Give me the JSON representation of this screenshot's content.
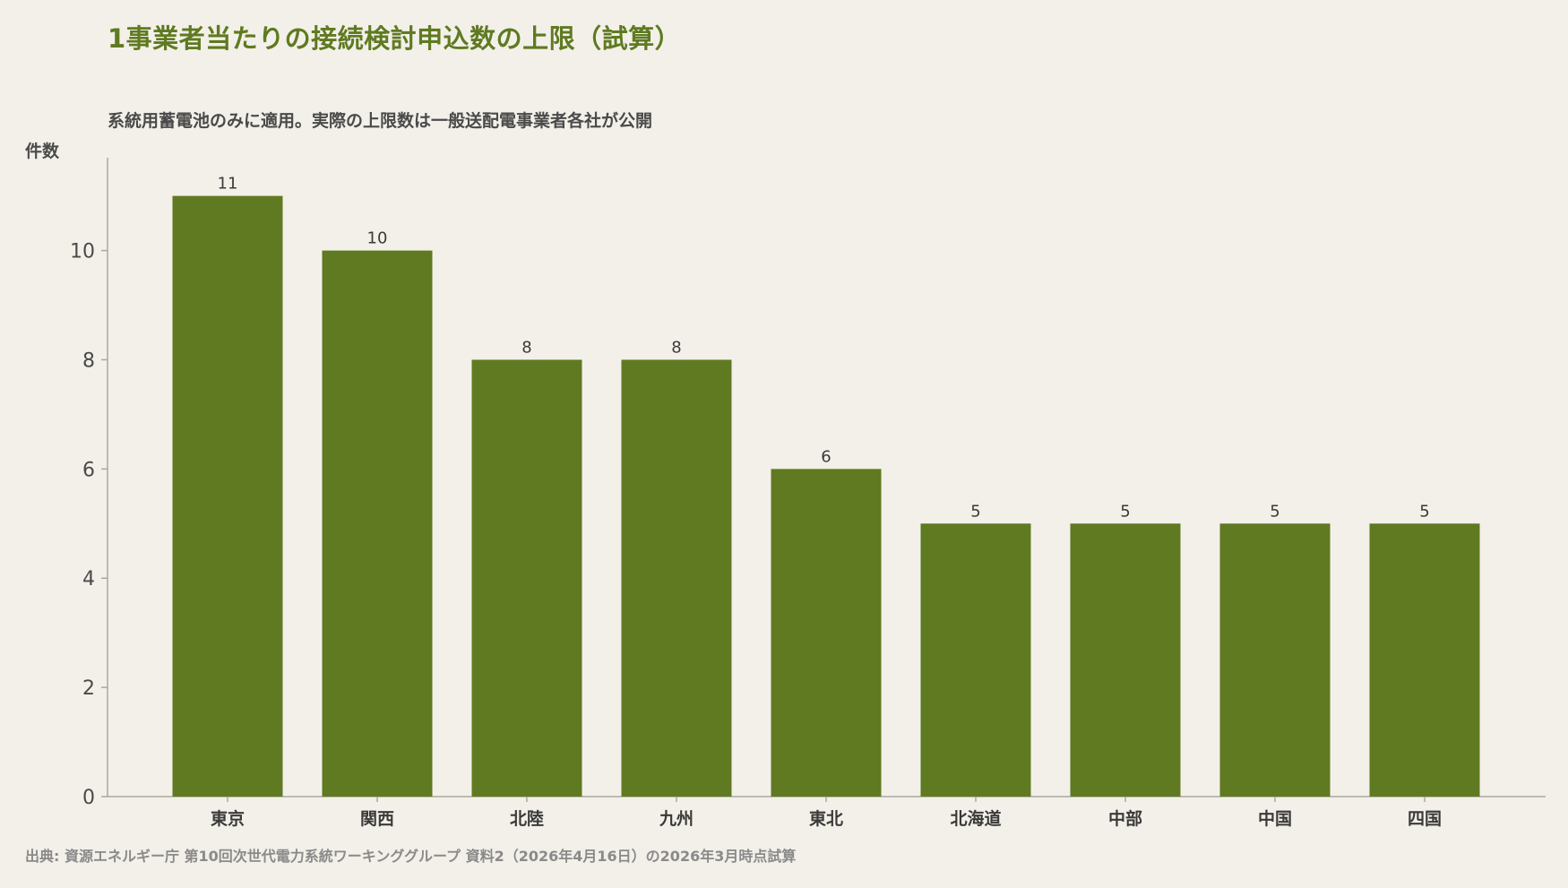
{
  "chart_data": {
    "type": "bar",
    "title": "1事業者当たりの接続検討申込数の上限（試算）",
    "subtitle": "系統用蓄電池のみに適用。実際の上限数は一般送配電事業者各社が公開",
    "ylabel": "件数",
    "xlabel": "",
    "categories": [
      "東京",
      "関西",
      "北陸",
      "九州",
      "東北",
      "北海道",
      "中部",
      "中国",
      "四国"
    ],
    "values": [
      11,
      10,
      8,
      8,
      6,
      5,
      5,
      5,
      5
    ],
    "ylim": [
      0,
      11.7
    ],
    "yticks": [
      0,
      2,
      4,
      6,
      8,
      10
    ],
    "grid": false,
    "bar_color": "#5f7a21",
    "axis_color": "#a9a9a0",
    "source": "出典: 資源エネルギー庁 第10回次世代電力系統ワーキンググループ 資料2（2026年4月16日）の2026年3月時点試算"
  }
}
